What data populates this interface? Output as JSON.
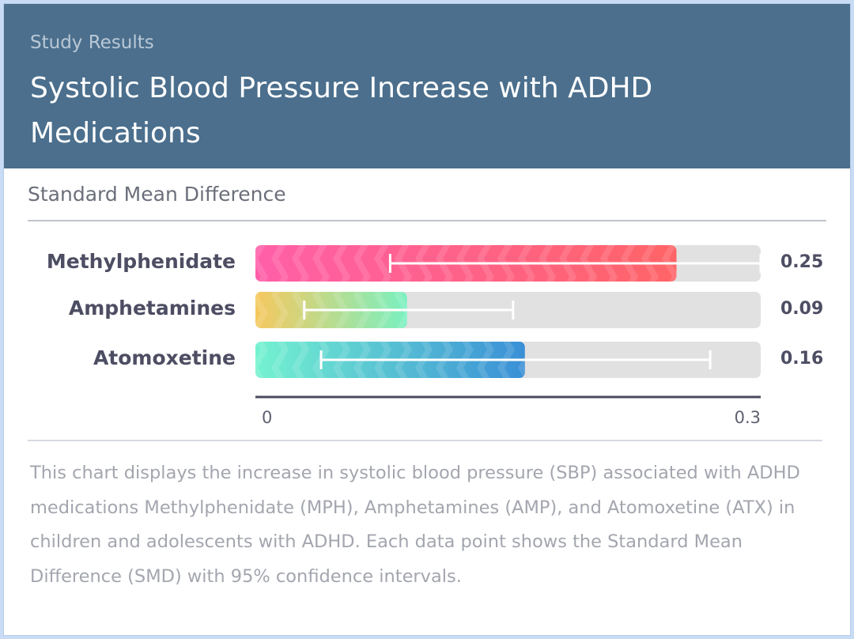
{
  "header": {
    "eyebrow": "Study Results",
    "title": "Systolic Blood Pressure Increase with ADHD Medications"
  },
  "colors": {
    "header_bg": "#4b6f8d",
    "track": "#e1e1e1",
    "axis": "#4a4a5e",
    "methylphenidate": [
      "#ff5fa8",
      "#ff6467"
    ],
    "amphetamines": [
      "#f6c85f",
      "#7af0c0"
    ],
    "atomoxetine": [
      "#74f2d0",
      "#3a8fd6"
    ]
  },
  "chart_data": {
    "type": "bar",
    "orientation": "horizontal",
    "title": "Standard Mean Difference",
    "xlim": [
      0,
      0.3
    ],
    "x_ticks": [
      "0",
      "0.3"
    ],
    "categories": [
      "Methylphenidate",
      "Amphetamines",
      "Atomoxetine"
    ],
    "values": [
      0.25,
      0.09,
      0.16
    ],
    "value_labels": [
      "0.25",
      "0.09",
      "0.16"
    ],
    "ci_low": [
      0.08,
      0.029,
      0.039
    ],
    "ci_high": [
      0.3,
      0.153,
      0.27
    ]
  },
  "description": "This chart displays the increase in systolic blood pressure (SBP) associated with ADHD medications Methylphenidate (MPH), Amphetamines (AMP), and Atomoxetine (ATX) in children and adolescents with ADHD. Each data point shows the Standard Mean Difference (SMD) with 95% confidence intervals."
}
